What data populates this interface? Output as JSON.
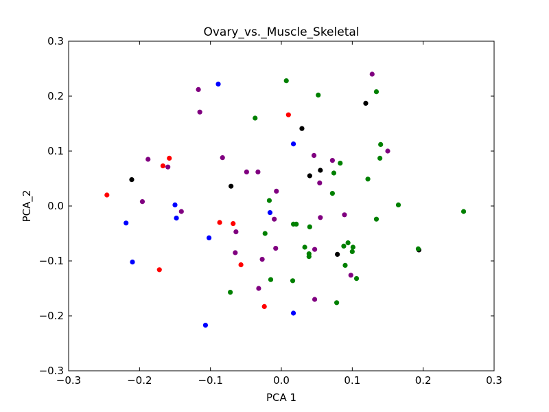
{
  "chart_data": {
    "type": "scatter",
    "title": "Ovary_vs._Muscle_Skeletal",
    "xlabel": "PCA 1",
    "ylabel": "PCA_2",
    "xlim": [
      -0.3,
      0.3
    ],
    "ylim": [
      -0.3,
      0.3
    ],
    "xticks": [
      -0.3,
      -0.2,
      -0.1,
      0.0,
      0.1,
      0.2,
      0.3
    ],
    "yticks": [
      -0.3,
      -0.2,
      -0.1,
      0.0,
      0.1,
      0.2,
      0.3
    ],
    "xtick_labels": [
      "−0.3",
      "−0.2",
      "−0.1",
      "0.0",
      "0.1",
      "0.2",
      "0.3"
    ],
    "ytick_labels": [
      "−0.3",
      "−0.2",
      "−0.1",
      "0.0",
      "0.1",
      "0.2",
      "0.3"
    ],
    "grid": false,
    "series": [
      {
        "color": "#0000ff",
        "points": [
          [
            -0.089,
            0.222
          ],
          [
            0.017,
            0.113
          ],
          [
            -0.15,
            0.002
          ],
          [
            -0.148,
            -0.022
          ],
          [
            -0.219,
            -0.031
          ],
          [
            -0.102,
            -0.058
          ],
          [
            -0.21,
            -0.102
          ],
          [
            -0.107,
            -0.217
          ],
          [
            0.017,
            -0.195
          ],
          [
            -0.016,
            -0.012
          ]
        ]
      },
      {
        "color": "#ff0000",
        "points": [
          [
            0.01,
            0.166
          ],
          [
            -0.158,
            0.087
          ],
          [
            -0.167,
            0.073
          ],
          [
            -0.246,
            0.02
          ],
          [
            -0.087,
            -0.03
          ],
          [
            -0.068,
            -0.032
          ],
          [
            -0.057,
            -0.107
          ],
          [
            -0.172,
            -0.116
          ],
          [
            -0.024,
            -0.183
          ]
        ]
      },
      {
        "color": "#000000",
        "points": [
          [
            0.119,
            0.187
          ],
          [
            0.029,
            0.141
          ],
          [
            0.055,
            0.065
          ],
          [
            0.04,
            0.055
          ],
          [
            -0.211,
            0.048
          ],
          [
            -0.071,
            0.036
          ],
          [
            0.079,
            -0.088
          ],
          [
            0.194,
            -0.08
          ]
        ]
      },
      {
        "color": "#800080",
        "points": [
          [
            0.128,
            0.24
          ],
          [
            -0.117,
            0.212
          ],
          [
            -0.115,
            0.171
          ],
          [
            0.15,
            0.1
          ],
          [
            0.046,
            0.092
          ],
          [
            -0.083,
            0.088
          ],
          [
            -0.188,
            0.085
          ],
          [
            0.072,
            0.083
          ],
          [
            -0.16,
            0.071
          ],
          [
            -0.049,
            0.062
          ],
          [
            -0.033,
            0.062
          ],
          [
            0.054,
            0.042
          ],
          [
            -0.007,
            0.027
          ],
          [
            -0.196,
            0.008
          ],
          [
            -0.141,
            -0.01
          ],
          [
            0.089,
            -0.016
          ],
          [
            0.055,
            -0.021
          ],
          [
            -0.01,
            -0.024
          ],
          [
            -0.064,
            -0.047
          ],
          [
            -0.008,
            -0.077
          ],
          [
            0.047,
            -0.079
          ],
          [
            -0.065,
            -0.085
          ],
          [
            -0.027,
            -0.097
          ],
          [
            0.098,
            -0.126
          ],
          [
            -0.032,
            -0.15
          ],
          [
            0.047,
            -0.17
          ]
        ]
      },
      {
        "color": "#008000",
        "points": [
          [
            0.007,
            0.228
          ],
          [
            0.134,
            0.208
          ],
          [
            0.052,
            0.202
          ],
          [
            -0.037,
            0.16
          ],
          [
            0.14,
            0.112
          ],
          [
            0.139,
            0.087
          ],
          [
            0.083,
            0.078
          ],
          [
            0.074,
            0.06
          ],
          [
            0.122,
            0.049
          ],
          [
            0.072,
            0.023
          ],
          [
            -0.017,
            0.01
          ],
          [
            0.165,
            0.002
          ],
          [
            0.257,
            -0.01
          ],
          [
            0.134,
            -0.024
          ],
          [
            0.017,
            -0.033
          ],
          [
            0.021,
            -0.033
          ],
          [
            0.04,
            -0.038
          ],
          [
            -0.023,
            -0.05
          ],
          [
            0.094,
            -0.067
          ],
          [
            0.033,
            -0.075
          ],
          [
            0.088,
            -0.073
          ],
          [
            0.101,
            -0.075
          ],
          [
            0.1,
            -0.083
          ],
          [
            0.193,
            -0.078
          ],
          [
            0.039,
            -0.087
          ],
          [
            0.039,
            -0.092
          ],
          [
            0.09,
            -0.108
          ],
          [
            -0.015,
            -0.134
          ],
          [
            0.016,
            -0.136
          ],
          [
            0.106,
            -0.132
          ],
          [
            -0.072,
            -0.157
          ],
          [
            0.078,
            -0.176
          ]
        ]
      }
    ]
  }
}
